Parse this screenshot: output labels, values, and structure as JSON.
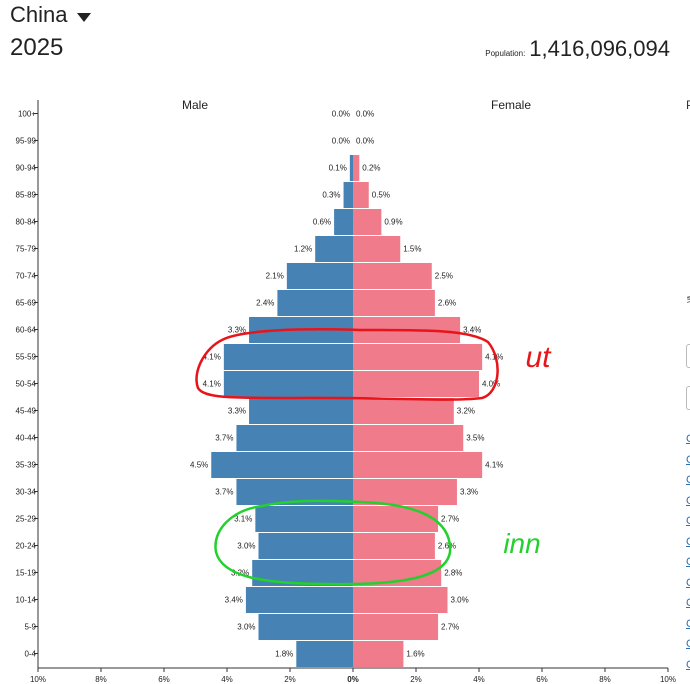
{
  "header": {
    "country": "China",
    "year": "2025",
    "population_label": "Population:",
    "population_value": "1,416,096,094"
  },
  "colors": {
    "male": "#4682b4",
    "female": "#ef7b8b",
    "annotation_red": "#e8141a",
    "annotation_green": "#22d12e"
  },
  "annotations": {
    "red_text": "ut",
    "green_text": "inn"
  },
  "side": {
    "letter": "P",
    "link_char": "C",
    "link_count": 12
  },
  "chart_data": {
    "type": "bar",
    "orientation": "horizontal-pyramid",
    "categories": [
      "0-4",
      "5-9",
      "10-14",
      "15-19",
      "20-24",
      "25-29",
      "30-34",
      "35-39",
      "40-44",
      "45-49",
      "50-54",
      "55-59",
      "60-64",
      "65-69",
      "70-74",
      "75-79",
      "80-84",
      "85-89",
      "90-94",
      "95-99",
      "100+"
    ],
    "series": [
      {
        "name": "Male",
        "values": [
          1.8,
          3.0,
          3.4,
          3.2,
          3.0,
          3.1,
          3.7,
          4.5,
          3.7,
          3.3,
          4.1,
          4.1,
          3.3,
          2.4,
          2.1,
          1.2,
          0.6,
          0.3,
          0.1,
          0.0,
          0.0
        ],
        "labels": [
          "1.8%",
          "3.0%",
          "3.4%",
          "3.2%",
          "3.0%",
          "3.1%",
          "3.7%",
          "4.5%",
          "3.7%",
          "3.3%",
          "4.1%",
          "4.1%",
          "3.3%",
          "2.4%",
          "2.1%",
          "1.2%",
          "0.6%",
          "0.3%",
          "0.1%",
          "0.0%",
          "0.0%"
        ]
      },
      {
        "name": "Female",
        "values": [
          1.6,
          2.7,
          3.0,
          2.8,
          2.6,
          2.7,
          3.3,
          4.1,
          3.5,
          3.2,
          4.0,
          4.1,
          3.4,
          2.6,
          2.5,
          1.5,
          0.9,
          0.5,
          0.2,
          0.0,
          0.0
        ],
        "labels": [
          "1.6%",
          "2.7%",
          "3.0%",
          "2.8%",
          "2.6%",
          "2.7%",
          "3.3%",
          "4.1%",
          "3.5%",
          "3.2%",
          "4.0%",
          "4.1%",
          "3.4%",
          "2.6%",
          "2.5%",
          "1.5%",
          "0.9%",
          "0.5%",
          "0.2%",
          "0.0%",
          "0.0%"
        ]
      }
    ],
    "xticks": [
      "10%",
      "8%",
      "6%",
      "4%",
      "2%",
      "0%",
      "2%",
      "4%",
      "6%",
      "8%",
      "10%"
    ],
    "xlim": [
      -10,
      10
    ],
    "grid": false
  }
}
